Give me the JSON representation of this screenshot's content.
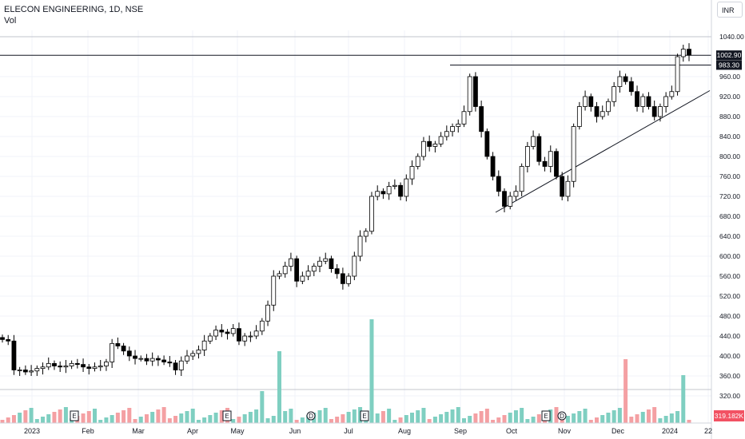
{
  "header": {
    "title": "ELECON ENGINEERING, 1D, NSE",
    "volume_label": "Vol",
    "currency": "INR"
  },
  "price_tags": {
    "last": "1002.90",
    "level": "983.30",
    "volume": "319.182K"
  },
  "colors": {
    "candle": "#000000",
    "volume_up": "#7fcfc1",
    "volume_down": "#f4a0a3",
    "volume_tag": "#f25263",
    "grid": "#f0f3fa",
    "axis_text": "#131722"
  },
  "events": [
    "E",
    "E",
    "D",
    "E",
    "E",
    "D"
  ],
  "chart_data": {
    "type": "candlestick",
    "title": "ELECON ENGINEERING, 1D, NSE",
    "x_labels": [
      "2023",
      "Feb",
      "Mar",
      "Apr",
      "May",
      "Jun",
      "Jul",
      "Aug",
      "Sep",
      "Oct",
      "Nov",
      "Dec",
      "2024",
      "22"
    ],
    "y_labels": [
      "1040.00",
      "960.00",
      "920.00",
      "880.00",
      "840.00",
      "800.00",
      "760.00",
      "720.00",
      "680.00",
      "640.00",
      "600.00",
      "560.00",
      "520.00",
      "480.00",
      "440.00",
      "400.00",
      "360.00",
      "320.00"
    ],
    "ylim": [
      305,
      1048
    ],
    "scale": "linear",
    "grid": true,
    "horizontal_lines": [
      1040,
      1002.9,
      983.3
    ],
    "trendline": {
      "from": [
        "Oct",
        690
      ],
      "to": [
        "22",
        940
      ]
    },
    "close_series": [
      433,
      430,
      372,
      372,
      368,
      370,
      375,
      378,
      385,
      380,
      378,
      380,
      385,
      383,
      378,
      375,
      378,
      380,
      388,
      425,
      420,
      410,
      400,
      395,
      395,
      390,
      395,
      392,
      388,
      386,
      372,
      390,
      400,
      405,
      412,
      430,
      440,
      452,
      448,
      445,
      455,
      430,
      440,
      440,
      450,
      470,
      502,
      560,
      565,
      580,
      595,
      550,
      560,
      570,
      580,
      590,
      595,
      575,
      565,
      545,
      560,
      600,
      640,
      650,
      720,
      730,
      725,
      740,
      742,
      720,
      755,
      780,
      800,
      830,
      820,
      825,
      840,
      850,
      860,
      865,
      890,
      960,
      900,
      850,
      800,
      760,
      730,
      700,
      720,
      730,
      780,
      820,
      840,
      790,
      780,
      810,
      760,
      720,
      750,
      860,
      900,
      920,
      900,
      880,
      890,
      910,
      940,
      960,
      950,
      930,
      900,
      920,
      900,
      880,
      900,
      920,
      930,
      1000,
      1015,
      1003
    ],
    "volume_note": "bars shown without a labelled axis; last value 319.182K",
    "series": [
      {
        "values": [
          433,
          430,
          372,
          372,
          368,
          370,
          375,
          378,
          385,
          380,
          378,
          380,
          385,
          383,
          378,
          375,
          378,
          380,
          388,
          425,
          420,
          410,
          400,
          395,
          395,
          390,
          395,
          392,
          388,
          386,
          372,
          390,
          400,
          405,
          412,
          430,
          440,
          452,
          448,
          445,
          455,
          430,
          440,
          440,
          450,
          470,
          502,
          560,
          565,
          580,
          595,
          550,
          560,
          570,
          580,
          590,
          595,
          575,
          565,
          545,
          560,
          600,
          640,
          650,
          720,
          730,
          725,
          740,
          742,
          720,
          755,
          780,
          800,
          830,
          820,
          825,
          840,
          850,
          860,
          865,
          890,
          960,
          900,
          850,
          800,
          760,
          730,
          700,
          720,
          730,
          780,
          820,
          840,
          790,
          780,
          810,
          760,
          720,
          750,
          860,
          900,
          920,
          900,
          880,
          890,
          910,
          940,
          960,
          950,
          930,
          900,
          920,
          900,
          880,
          900,
          920,
          930,
          1000,
          1015,
          1003
        ]
      }
    ]
  }
}
